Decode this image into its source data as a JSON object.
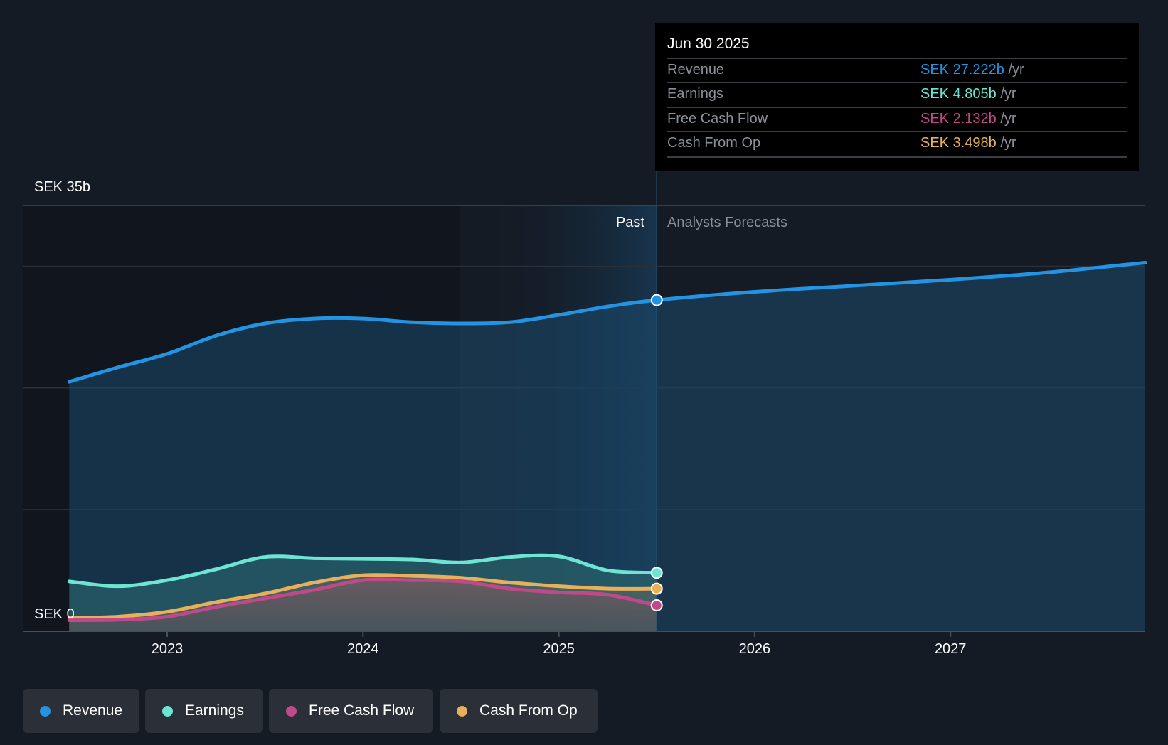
{
  "chart_data": {
    "type": "area",
    "title": "",
    "currency": "SEK",
    "unit": "b",
    "ylim": [
      0,
      35
    ],
    "y_tick_labels": [
      "SEK 0",
      "SEK 35b"
    ],
    "y_gridlines": [
      0,
      10,
      20,
      30,
      35
    ],
    "x_ticks": [
      2023,
      2024,
      2025,
      2026,
      2027
    ],
    "x_tick_labels": [
      "2023",
      "2024",
      "2025",
      "2026",
      "2027"
    ],
    "xlim": [
      2022.53,
      2028.0
    ],
    "regions": {
      "past_label": "Past",
      "forecast_label": "Analysts Forecasts",
      "highlight_start": 2024.5,
      "divider": 2025.5
    },
    "series": [
      {
        "name": "Revenue",
        "color": "#2394e3",
        "x": [
          2022.5,
          2022.75,
          2023.0,
          2023.25,
          2023.5,
          2023.75,
          2024.0,
          2024.25,
          2024.5,
          2024.75,
          2025.0,
          2025.25,
          2025.5,
          2026.0,
          2026.5,
          2027.0,
          2027.5,
          2028.0
        ],
        "values": [
          20.5,
          21.7,
          22.8,
          24.3,
          25.3,
          25.7,
          25.7,
          25.4,
          25.3,
          25.4,
          26.0,
          26.7,
          27.222,
          27.9,
          28.4,
          28.9,
          29.5,
          30.3
        ]
      },
      {
        "name": "Earnings",
        "color": "#6ce5d3",
        "x": [
          2022.5,
          2022.75,
          2023.0,
          2023.25,
          2023.5,
          2023.75,
          2024.0,
          2024.25,
          2024.5,
          2024.75,
          2025.0,
          2025.25,
          2025.5
        ],
        "values": [
          4.1,
          3.7,
          4.2,
          5.1,
          6.1,
          6.0,
          5.95,
          5.9,
          5.65,
          6.1,
          6.15,
          5.0,
          4.805
        ]
      },
      {
        "name": "Free Cash Flow",
        "color": "#c0498a",
        "x": [
          2022.5,
          2022.75,
          2023.0,
          2023.25,
          2023.5,
          2023.75,
          2024.0,
          2024.25,
          2024.5,
          2024.75,
          2025.0,
          2025.25,
          2025.5
        ],
        "values": [
          0.9,
          0.95,
          1.2,
          2.0,
          2.7,
          3.4,
          4.2,
          4.2,
          4.1,
          3.5,
          3.2,
          3.0,
          2.132
        ]
      },
      {
        "name": "Cash From Op",
        "color": "#e9b05c",
        "x": [
          2022.5,
          2022.75,
          2023.0,
          2023.25,
          2023.5,
          2023.75,
          2024.0,
          2024.25,
          2024.5,
          2024.75,
          2025.0,
          2025.25,
          2025.5
        ],
        "values": [
          1.1,
          1.2,
          1.6,
          2.4,
          3.1,
          4.0,
          4.6,
          4.55,
          4.4,
          4.0,
          3.7,
          3.5,
          3.498
        ]
      }
    ]
  },
  "tooltip": {
    "date": "Jun 30 2025",
    "unit_suffix": "/yr",
    "rows": [
      {
        "label": "Revenue",
        "value": "SEK 27.222b",
        "color": "#2394e3"
      },
      {
        "label": "Earnings",
        "value": "SEK 4.805b",
        "color": "#6ce5d3"
      },
      {
        "label": "Free Cash Flow",
        "value": "SEK 2.132b",
        "color": "#c0498a"
      },
      {
        "label": "Cash From Op",
        "value": "SEK 3.498b",
        "color": "#e9b05c"
      }
    ]
  },
  "legend": [
    {
      "label": "Revenue",
      "color": "#2394e3"
    },
    {
      "label": "Earnings",
      "color": "#6ce5d3"
    },
    {
      "label": "Free Cash Flow",
      "color": "#c0498a"
    },
    {
      "label": "Cash From Op",
      "color": "#e9b05c"
    }
  ]
}
